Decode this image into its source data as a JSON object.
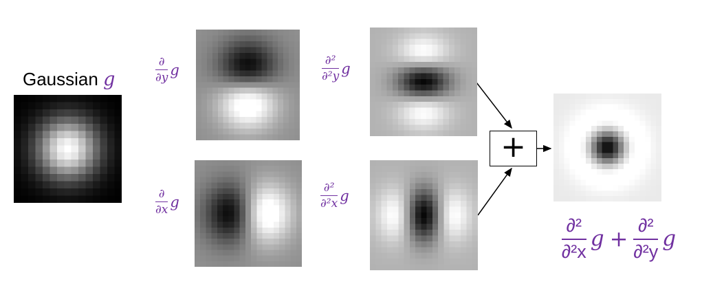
{
  "title": {
    "prefix": "Gaussian ",
    "g": "g"
  },
  "colors": {
    "accent_purple": "#7030A0",
    "ink": "#000000"
  },
  "labels": {
    "dy": {
      "num": "∂",
      "den": "∂y",
      "g": "g"
    },
    "dx": {
      "num": "∂",
      "den": "∂x",
      "g": "g"
    },
    "d2y": {
      "num": "∂²",
      "den": "∂²y",
      "g": "g"
    },
    "d2x": {
      "num": "∂²",
      "den": "∂²x",
      "g": "g"
    }
  },
  "plus": {
    "label": "+"
  },
  "formula": {
    "t1_num": "∂²",
    "t1_den": "∂²x",
    "t1_g": "g",
    "op": "+",
    "t2_num": "∂²",
    "t2_den": "∂²y",
    "t2_g": "g"
  },
  "figures": [
    {
      "id": "gaussian",
      "n": 15,
      "sigma": 3.0,
      "depicts": "Gaussian kernel g"
    },
    {
      "id": "dy",
      "n": 19,
      "sigma": 3.7,
      "depicts": "first y-derivative of Gaussian"
    },
    {
      "id": "dx",
      "n": 19,
      "sigma": 3.7,
      "depicts": "first x-derivative of Gaussian"
    },
    {
      "id": "d2y",
      "n": 19,
      "sigma": 3.2,
      "depicts": "second y-derivative of Gaussian"
    },
    {
      "id": "d2x",
      "n": 19,
      "sigma": 3.2,
      "depicts": "second x-derivative of Gaussian"
    },
    {
      "id": "sum",
      "n": 20,
      "sigma": 3.0,
      "depicts": "Laplacian of Gaussian (sum of second derivatives)"
    }
  ]
}
